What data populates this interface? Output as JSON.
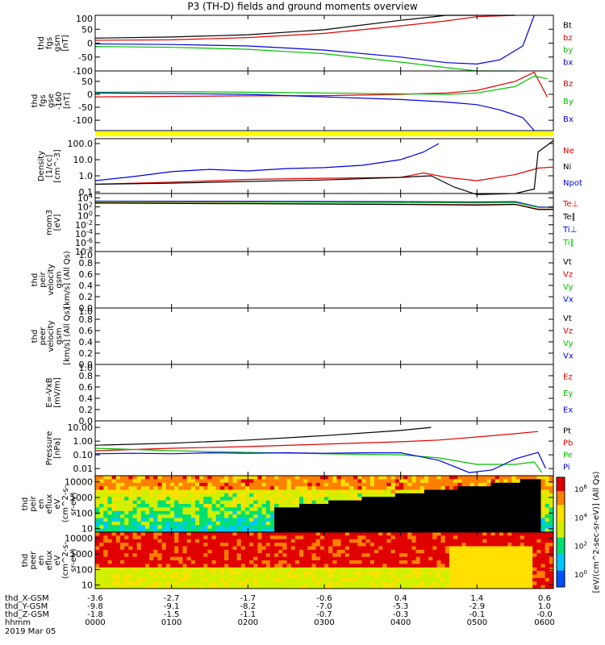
{
  "title": "P3 (TH-D) fields and ground moments overview",
  "date_label": "2019 Mar 05",
  "footer": {
    "rows": [
      {
        "label": "thd_X-GSM",
        "values": [
          "-3.6",
          "-2.7",
          "-1.7",
          "-0.6",
          "0.4",
          "1.4",
          "0.6"
        ]
      },
      {
        "label": "thd_Y-GSM",
        "values": [
          "-9.8",
          "-9.1",
          "-8.2",
          "-7.0",
          "-5.3",
          "-2.9",
          "1.0"
        ]
      },
      {
        "label": "thd_Z-GSM",
        "values": [
          "-1.8",
          "-1.5",
          "-1.1",
          "-0.7",
          "-0.3",
          "-0.1",
          "-0.0"
        ]
      },
      {
        "label": "hhmm",
        "values": [
          "0000",
          "0100",
          "0200",
          "0300",
          "0400",
          "0500",
          "0600"
        ]
      }
    ]
  },
  "colorbar": {
    "label": "[eV/(cm^2-sec-sr-eV)] (All Qs)",
    "ticks": [
      "10^6",
      "10^4",
      "10^2",
      "10^0"
    ]
  },
  "chart_data": [
    {
      "type": "line",
      "panel": "fgs_gsm",
      "ylabel": [
        "thd",
        "fgs",
        "gsm",
        "[nT]"
      ],
      "ylim": [
        -100,
        100
      ],
      "yticks": [
        "100",
        "50",
        "0",
        "-50",
        "-100"
      ],
      "legend": [
        {
          "name": "Bt",
          "color": "#000000"
        },
        {
          "name": "bz",
          "color": "#e00000"
        },
        {
          "name": "by",
          "color": "#00c000"
        },
        {
          "name": "bx",
          "color": "#0000e0"
        }
      ],
      "series": [
        {
          "name": "Bt",
          "color": "#000000",
          "x": [
            0,
            1,
            2,
            3,
            4,
            4.6,
            5,
            5.5
          ],
          "y": [
            18,
            22,
            30,
            48,
            82,
            100,
            100,
            100
          ]
        },
        {
          "name": "bz",
          "color": "#e00000",
          "x": [
            0,
            1,
            2,
            3,
            4,
            4.6,
            5,
            5.5
          ],
          "y": [
            10,
            12,
            20,
            35,
            62,
            80,
            95,
            100
          ]
        },
        {
          "name": "by",
          "color": "#00c000",
          "x": [
            0,
            1,
            2,
            3,
            4,
            4.6,
            5,
            5.5
          ],
          "y": [
            -12,
            -15,
            -22,
            -38,
            -68,
            -88,
            -100,
            -100
          ]
        },
        {
          "name": "bx",
          "color": "#0000e0",
          "x": [
            0,
            1,
            2,
            3,
            4,
            4.6,
            5,
            5.3,
            5.6,
            5.75
          ],
          "y": [
            -3,
            -5,
            -10,
            -25,
            -50,
            -70,
            -75,
            -60,
            -10,
            100
          ]
        }
      ]
    },
    {
      "type": "line",
      "panel": "fgs_gse",
      "ylabel": [
        "thd",
        "fgs",
        "gse",
        "-160",
        "[nT]"
      ],
      "ylim": [
        -140,
        90
      ],
      "yticks": [
        "50",
        "0",
        "-50",
        "-100"
      ],
      "legend": [
        {
          "name": "Bz",
          "color": "#e00000"
        },
        {
          "name": "By",
          "color": "#00c000"
        },
        {
          "name": "Bx",
          "color": "#0000e0"
        }
      ],
      "series": [
        {
          "name": "Bz",
          "color": "#e00000",
          "x": [
            0,
            1,
            2,
            3,
            4,
            4.6,
            5,
            5.5,
            5.75,
            5.92
          ],
          "y": [
            -10,
            -8,
            -6,
            -5,
            0,
            5,
            15,
            50,
            85,
            -10
          ]
        },
        {
          "name": "By",
          "color": "#00c000",
          "x": [
            0,
            1,
            2,
            3,
            4,
            4.6,
            5,
            5.5,
            5.75,
            5.92
          ],
          "y": [
            8,
            10,
            8,
            5,
            2,
            0,
            5,
            30,
            70,
            60
          ]
        },
        {
          "name": "Bx",
          "color": "#0000e0",
          "x": [
            0,
            1,
            2,
            3,
            4,
            4.6,
            5,
            5.3,
            5.6,
            5.75
          ],
          "y": [
            5,
            3,
            0,
            -10,
            -20,
            -30,
            -40,
            -60,
            -90,
            -140
          ]
        }
      ]
    },
    {
      "type": "line",
      "panel": "density",
      "yscale": "log",
      "ylabel": [
        "Density",
        "[1/cc]",
        "[cm^-3]"
      ],
      "ylim": [
        0.08,
        200
      ],
      "yticks": [
        "100.0",
        "10.0",
        "1.0",
        "0.1"
      ],
      "legend": [
        {
          "name": "Ne",
          "color": "#e00000"
        },
        {
          "name": "Ni",
          "color": "#000000"
        },
        {
          "name": "Npot",
          "color": "#0000e0"
        }
      ],
      "series": [
        {
          "name": "Npot",
          "color": "#0000e0",
          "x": [
            0,
            0.5,
            1,
            1.5,
            2,
            2.5,
            3,
            3.5,
            4,
            4.3,
            4.5
          ],
          "y": [
            0.5,
            0.9,
            1.8,
            2.5,
            2.0,
            2.8,
            3.2,
            4.5,
            10,
            30,
            100
          ]
        },
        {
          "name": "Ne",
          "color": "#e00000",
          "x": [
            0,
            1,
            2,
            3,
            4,
            4.3,
            4.6,
            5,
            5.5,
            5.8,
            6
          ],
          "y": [
            0.3,
            0.4,
            0.6,
            0.7,
            0.8,
            1.5,
            0.8,
            0.5,
            1.2,
            3.0,
            3.5
          ]
        },
        {
          "name": "Ni",
          "color": "#000000",
          "x": [
            0,
            1,
            2,
            3,
            4,
            4.4,
            4.7,
            5,
            5.5,
            5.75,
            5.8,
            6
          ],
          "y": [
            0.3,
            0.35,
            0.45,
            0.55,
            0.8,
            1.0,
            0.2,
            0.06,
            0.08,
            0.15,
            30,
            150
          ]
        }
      ]
    },
    {
      "type": "line",
      "panel": "temperature",
      "yscale": "log",
      "ylabel": [
        "mom3",
        "[eV]"
      ],
      "ylim": [
        1e-08,
        100000.0
      ],
      "yticks": [
        "10^4",
        "10^2",
        "10^0",
        "10^-2",
        "10^-4",
        "10^-6",
        "10^-8"
      ],
      "legend": [
        {
          "name": "Te⊥",
          "color": "#e00000"
        },
        {
          "name": "Te∥",
          "color": "#000000"
        },
        {
          "name": "Ti⊥",
          "color": "#0000e0"
        },
        {
          "name": "Ti∥",
          "color": "#00c000"
        }
      ],
      "series": [
        {
          "name": "Ti⊥",
          "color": "#0000e0",
          "x": [
            0,
            2,
            4,
            5,
            5.5,
            5.8,
            6
          ],
          "y": [
            2000,
            1800,
            1500,
            1200,
            1500,
            100,
            80
          ]
        },
        {
          "name": "Ti∥",
          "color": "#00c000",
          "x": [
            0,
            2,
            4,
            5,
            5.5,
            5.8,
            6
          ],
          "y": [
            1500,
            1200,
            1000,
            800,
            1000,
            80,
            70
          ]
        },
        {
          "name": "Te⊥",
          "color": "#e00000",
          "x": [
            0,
            2,
            4,
            5,
            5.5,
            5.8,
            6
          ],
          "y": [
            800,
            600,
            400,
            300,
            400,
            30,
            30
          ]
        },
        {
          "name": "Te∥",
          "color": "#000000",
          "x": [
            0,
            2,
            4,
            5,
            5.5,
            5.8,
            6
          ],
          "y": [
            700,
            500,
            350,
            250,
            350,
            25,
            25
          ]
        }
      ]
    },
    {
      "type": "line",
      "panel": "peir_velocity",
      "ylabel": [
        "thd",
        "peir",
        "velocity",
        "gsm",
        "[km/s] (All Qs)"
      ],
      "ylim": [
        0,
        1
      ],
      "yticks": [
        "1.0",
        "0.8",
        "0.6",
        "0.4",
        "0.2",
        "0.0"
      ],
      "legend": [
        {
          "name": "Vt",
          "color": "#000000"
        },
        {
          "name": "Vz",
          "color": "#e00000"
        },
        {
          "name": "Vy",
          "color": "#00c000"
        },
        {
          "name": "Vx",
          "color": "#0000e0"
        }
      ],
      "series": []
    },
    {
      "type": "line",
      "panel": "peer_velocity",
      "ylabel": [
        "thd",
        "peer",
        "velocity",
        "gsm",
        "[km/s] (All Qs)"
      ],
      "ylim": [
        0,
        1
      ],
      "yticks": [
        "1.0",
        "0.8",
        "0.6",
        "0.4",
        "0.2",
        "0.0"
      ],
      "legend": [
        {
          "name": "Vt",
          "color": "#000000"
        },
        {
          "name": "Vz",
          "color": "#e00000"
        },
        {
          "name": "Vy",
          "color": "#00c000"
        },
        {
          "name": "Vx",
          "color": "#0000e0"
        }
      ],
      "series": []
    },
    {
      "type": "line",
      "panel": "e_field",
      "ylabel": [
        "E=-VxB",
        "[mV/m]"
      ],
      "ylim": [
        0,
        1
      ],
      "yticks": [
        "1.0",
        "0.8",
        "0.6",
        "0.4",
        "0.2",
        "0.0"
      ],
      "legend": [
        {
          "name": "Ez",
          "color": "#e00000"
        },
        {
          "name": "Ey",
          "color": "#00c000"
        },
        {
          "name": "Ex",
          "color": "#0000e0"
        }
      ],
      "series": []
    },
    {
      "type": "line",
      "panel": "pressure",
      "yscale": "log",
      "ylabel": [
        "Pressure",
        "[nPa]"
      ],
      "ylim": [
        0.003,
        30
      ],
      "yticks": [
        "10.00",
        "1.00",
        "0.10",
        "0.01"
      ],
      "legend": [
        {
          "name": "Pt",
          "color": "#000000"
        },
        {
          "name": "Pb",
          "color": "#e00000"
        },
        {
          "name": "Pe",
          "color": "#00c000"
        },
        {
          "name": "Pi",
          "color": "#0000e0"
        }
      ],
      "series": [
        {
          "name": "Pt",
          "color": "#000000",
          "x": [
            0,
            1,
            2,
            3,
            4,
            4.4
          ],
          "y": [
            0.5,
            0.7,
            1.2,
            2.5,
            6,
            10
          ]
        },
        {
          "name": "Pb",
          "color": "#e00000",
          "x": [
            0,
            1,
            2,
            3,
            4,
            4.5,
            5,
            5.5,
            5.8
          ],
          "y": [
            0.2,
            0.3,
            0.4,
            0.6,
            0.9,
            1.2,
            2.0,
            3.5,
            5
          ]
        },
        {
          "name": "Pe",
          "color": "#00c000",
          "x": [
            0,
            1,
            2,
            3,
            4,
            4.5,
            5,
            5.5,
            5.75,
            5.85
          ],
          "y": [
            0.3,
            0.2,
            0.15,
            0.12,
            0.1,
            0.06,
            0.02,
            0.02,
            0.03,
            0.005
          ]
        },
        {
          "name": "Pi",
          "color": "#0000e0",
          "x": [
            0,
            0.5,
            1,
            1.5,
            2,
            2.5,
            3,
            3.5,
            4,
            4.5,
            4.9,
            5.2,
            5.5,
            5.8,
            5.9
          ],
          "y": [
            0.12,
            0.13,
            0.12,
            0.14,
            0.13,
            0.14,
            0.13,
            0.14,
            0.14,
            0.04,
            0.005,
            0.008,
            0.05,
            0.15,
            0.01
          ]
        }
      ]
    },
    {
      "type": "heatmap",
      "panel": "peir_eflux",
      "ylabel": [
        "thd",
        "peir",
        "en",
        "eflux",
        "eV",
        "(cm^2-s-",
        "sr-eV)"
      ],
      "yscale": "log",
      "ylim": [
        6,
        25000
      ],
      "yticks": [
        "10000",
        "1000",
        "100",
        "10"
      ]
    },
    {
      "type": "heatmap",
      "panel": "peer_eflux",
      "ylabel": [
        "thd",
        "peer",
        "en",
        "eflux",
        "eV",
        "(cm^2-s-",
        "sr-eV)"
      ],
      "yscale": "log",
      "ylim": [
        6,
        25000
      ],
      "yticks": [
        "10000",
        "1000",
        "100",
        "10"
      ]
    }
  ]
}
